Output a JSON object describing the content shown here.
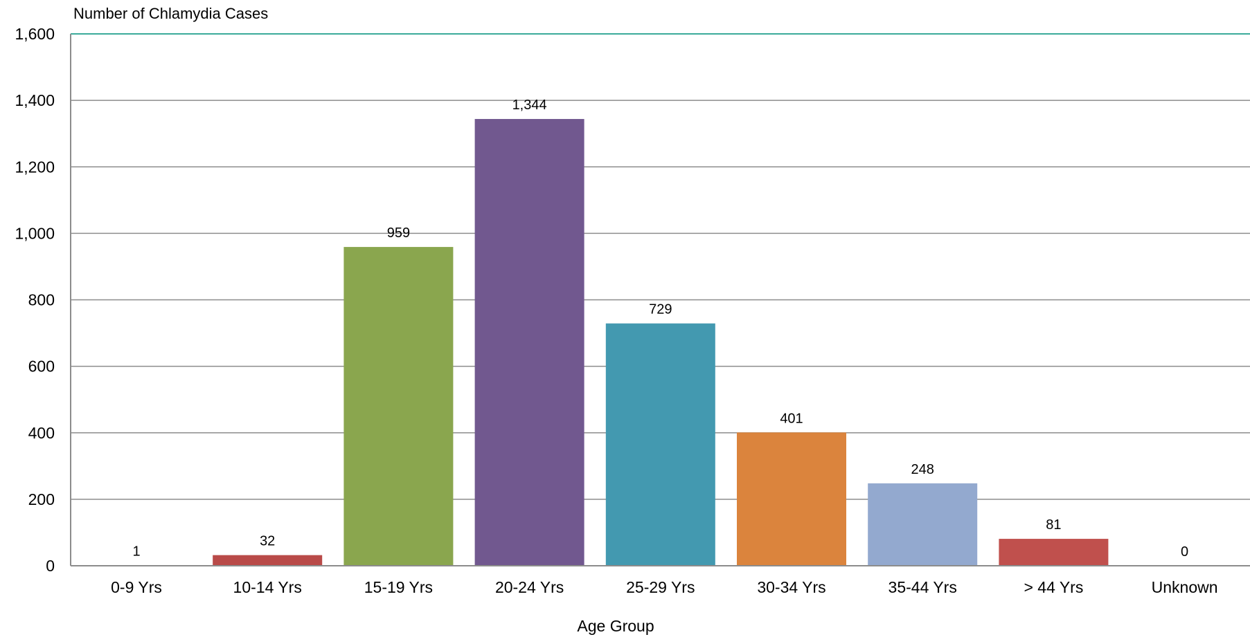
{
  "chart_data": {
    "type": "bar",
    "ylabel": "Number of Chlamydia Cases",
    "xlabel": "Age Group",
    "categories": [
      "0-9 Yrs",
      "10-14 Yrs",
      "15-19 Yrs",
      "20-24 Yrs",
      "25-29 Yrs",
      "30-34 Yrs",
      "35-44 Yrs",
      "> 44 Yrs",
      "Unknown"
    ],
    "values": [
      1,
      32,
      959,
      1344,
      729,
      401,
      248,
      81,
      0
    ],
    "data_labels": [
      "1",
      "32",
      "959",
      "1,344",
      "729",
      "401",
      "248",
      "81",
      "0"
    ],
    "colors": [
      "#4f81bd",
      "#b94a48",
      "#8aa64e",
      "#71588f",
      "#4399b0",
      "#db843d",
      "#93a9cf",
      "#c0504d",
      "#4f81bd"
    ],
    "ylim": [
      0,
      1600
    ],
    "yticks": [
      0,
      200,
      400,
      600,
      800,
      1000,
      1200,
      1400,
      1600
    ],
    "ytick_labels": [
      "0",
      "200",
      "400",
      "600",
      "800",
      "1,000",
      "1,200",
      "1,400",
      "1,600"
    ],
    "grid": true,
    "gridline_color": "#8c8c8c",
    "top_line_color": "#3aaa9a",
    "legend": "none"
  }
}
